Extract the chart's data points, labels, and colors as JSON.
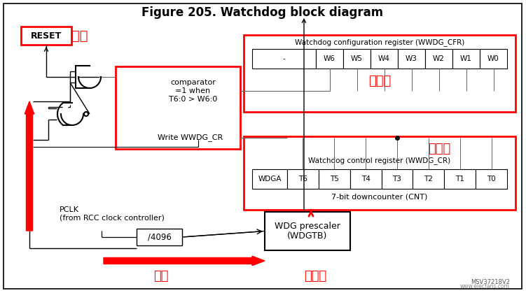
{
  "title": "Figure 205. Watchdog block diagram",
  "bg_color": "#ffffff",
  "red_color": "#ff0000",
  "title_fontsize": 12,
  "cfr_label": "Watchdog configuration register (WWDG_CFR)",
  "cr_label": "Watchdog control register (WWDG_CR)",
  "cnt_label": "7-bit downcounter (CNT)",
  "cfr_bits": [
    "-",
    "W6",
    "W5",
    "W4",
    "W3",
    "W2",
    "W1",
    "W0"
  ],
  "cr_bits": [
    "WDGA",
    "T6",
    "T5",
    "T4",
    "T3",
    "T2",
    "T1",
    "T0"
  ],
  "window_value_label": "窗口値",
  "count_value_label": "计数値",
  "reset_label": "RESET",
  "reset_chinese": "复位",
  "pclk_label": "PCLK\n(from RCC clock controller)",
  "div_label": "/4096",
  "wdg_prescaler_label": "WDG prescaler\n(WDGTB)",
  "comparator_label": "comparator\n=1 when\nT6:0 > W6:0",
  "write_label": "Write WWDG_CR",
  "fen_pin": "分频",
  "zai_fen_pin": "再分频",
  "watermark": "MSV37218V2",
  "watermark2": "www.elecfans.com"
}
